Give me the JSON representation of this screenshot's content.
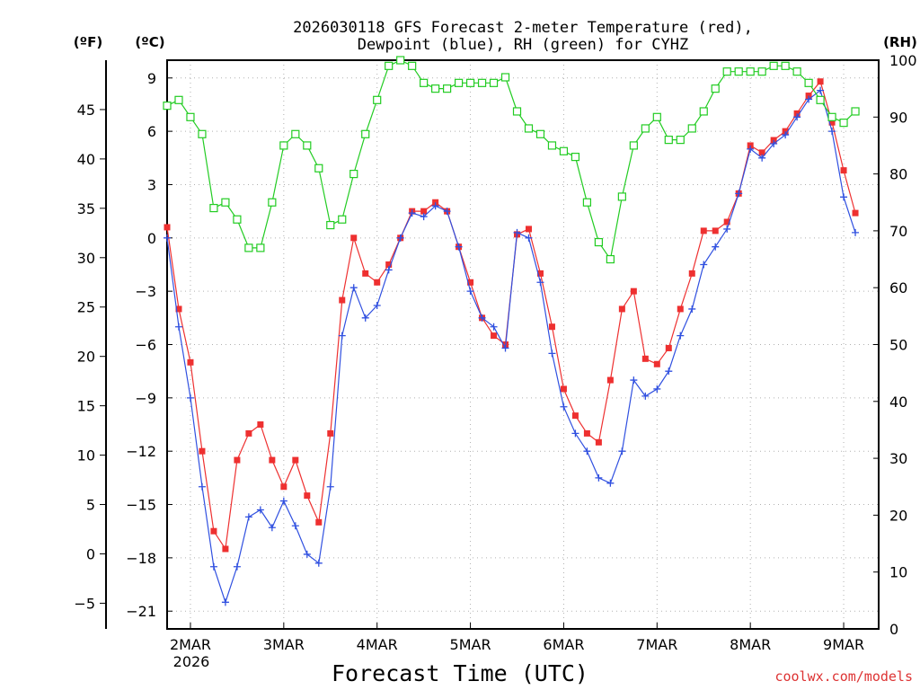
{
  "chart_data": {
    "type": "line",
    "title_line1": "2026030118 GFS Forecast 2-meter Temperature (red),",
    "title_line2": "Dewpoint (blue), RH (green) for CYHZ",
    "xlabel": "Forecast Time (UTC)",
    "credit": "coolwx.com/models",
    "unit_f": "(ºF)",
    "unit_c": "(ºC)",
    "unit_rh": "(RH)",
    "x_start_label": "2026",
    "x_unit": "days since 2026-03-01 18Z",
    "xlim": [
      0,
      7.625
    ],
    "ylim_c": [
      -22,
      10
    ],
    "ylim_rh": [
      0,
      100
    ],
    "ylim_f": [
      -7.6,
      50
    ],
    "x_ticks": [
      {
        "x": 0.25,
        "label": "2MAR"
      },
      {
        "x": 1.25,
        "label": "3MAR"
      },
      {
        "x": 2.25,
        "label": "4MAR"
      },
      {
        "x": 3.25,
        "label": "5MAR"
      },
      {
        "x": 4.25,
        "label": "6MAR"
      },
      {
        "x": 5.25,
        "label": "7MAR"
      },
      {
        "x": 6.25,
        "label": "8MAR"
      },
      {
        "x": 7.25,
        "label": "9MAR"
      }
    ],
    "c_ticks": [
      {
        "v": 9,
        "label": "9"
      },
      {
        "v": 6,
        "label": "6"
      },
      {
        "v": 3,
        "label": "3"
      },
      {
        "v": 0,
        "label": "0"
      },
      {
        "v": -3,
        "label": "−3"
      },
      {
        "v": -6,
        "label": "−6"
      },
      {
        "v": -9,
        "label": "−9"
      },
      {
        "v": -12,
        "label": "−12"
      },
      {
        "v": -15,
        "label": "−15"
      },
      {
        "v": -18,
        "label": "−18"
      },
      {
        "v": -21,
        "label": "−21"
      }
    ],
    "f_ticks": [
      {
        "v": 45,
        "label": "45"
      },
      {
        "v": 40,
        "label": "40"
      },
      {
        "v": 35,
        "label": "35"
      },
      {
        "v": 30,
        "label": "30"
      },
      {
        "v": 25,
        "label": "25"
      },
      {
        "v": 20,
        "label": "20"
      },
      {
        "v": 15,
        "label": "15"
      },
      {
        "v": 10,
        "label": "10"
      },
      {
        "v": 5,
        "label": "5"
      },
      {
        "v": 0,
        "label": "0"
      },
      {
        "v": -5,
        "label": "−5"
      }
    ],
    "rh_ticks": [
      {
        "v": 100,
        "label": "100"
      },
      {
        "v": 90,
        "label": "90"
      },
      {
        "v": 80,
        "label": "80"
      },
      {
        "v": 70,
        "label": "70"
      },
      {
        "v": 60,
        "label": "60"
      },
      {
        "v": 50,
        "label": "50"
      },
      {
        "v": 40,
        "label": "40"
      },
      {
        "v": 30,
        "label": "30"
      },
      {
        "v": 20,
        "label": "20"
      },
      {
        "v": 10,
        "label": "10"
      },
      {
        "v": 0,
        "label": "0"
      }
    ],
    "series": [
      {
        "name": "Temperature",
        "unit": "C",
        "color": "#ee3030",
        "marker": "square-filled",
        "points": [
          [
            0,
            0.6
          ],
          [
            0.125,
            -4
          ],
          [
            0.25,
            -7
          ],
          [
            0.375,
            -12
          ],
          [
            0.5,
            -16.5
          ],
          [
            0.625,
            -17.5
          ],
          [
            0.75,
            -12.5
          ],
          [
            0.875,
            -11
          ],
          [
            1,
            -10.5
          ],
          [
            1.125,
            -12.5
          ],
          [
            1.25,
            -14
          ],
          [
            1.375,
            -12.5
          ],
          [
            1.5,
            -14.5
          ],
          [
            1.625,
            -16
          ],
          [
            1.75,
            -11
          ],
          [
            1.875,
            -3.5
          ],
          [
            2,
            0
          ],
          [
            2.125,
            -2
          ],
          [
            2.25,
            -2.5
          ],
          [
            2.375,
            -1.5
          ],
          [
            2.5,
            0
          ],
          [
            2.625,
            1.5
          ],
          [
            2.75,
            1.5
          ],
          [
            2.875,
            2
          ],
          [
            3,
            1.5
          ],
          [
            3.125,
            -0.5
          ],
          [
            3.25,
            -2.5
          ],
          [
            3.375,
            -4.5
          ],
          [
            3.5,
            -5.5
          ],
          [
            3.625,
            -6
          ],
          [
            3.75,
            0.2
          ],
          [
            3.875,
            0.5
          ],
          [
            4,
            -2
          ],
          [
            4.125,
            -5
          ],
          [
            4.25,
            -8.5
          ],
          [
            4.375,
            -10
          ],
          [
            4.5,
            -11
          ],
          [
            4.625,
            -11.5
          ],
          [
            4.75,
            -8
          ],
          [
            4.875,
            -4
          ],
          [
            5,
            -3
          ],
          [
            5.125,
            -6.8
          ],
          [
            5.25,
            -7.1
          ],
          [
            5.375,
            -6.2
          ],
          [
            5.5,
            -4
          ],
          [
            5.625,
            -2
          ],
          [
            5.75,
            0.4
          ],
          [
            5.875,
            0.4
          ],
          [
            6,
            0.9
          ],
          [
            6.125,
            2.5
          ],
          [
            6.25,
            5.2
          ],
          [
            6.375,
            4.8
          ],
          [
            6.5,
            5.5
          ],
          [
            6.625,
            6
          ],
          [
            6.75,
            7
          ],
          [
            6.875,
            8
          ],
          [
            7,
            8.8
          ],
          [
            7.125,
            6.5
          ],
          [
            7.25,
            3.8
          ],
          [
            7.375,
            1.4
          ]
        ]
      },
      {
        "name": "Dewpoint",
        "unit": "C",
        "color": "#3050e0",
        "marker": "plus",
        "points": [
          [
            0,
            0
          ],
          [
            0.125,
            -5
          ],
          [
            0.25,
            -9
          ],
          [
            0.375,
            -14
          ],
          [
            0.5,
            -18.5
          ],
          [
            0.625,
            -20.5
          ],
          [
            0.75,
            -18.5
          ],
          [
            0.875,
            -15.7
          ],
          [
            1,
            -15.3
          ],
          [
            1.125,
            -16.3
          ],
          [
            1.25,
            -14.8
          ],
          [
            1.375,
            -16.2
          ],
          [
            1.5,
            -17.8
          ],
          [
            1.625,
            -18.3
          ],
          [
            1.75,
            -14
          ],
          [
            1.875,
            -5.5
          ],
          [
            2,
            -2.8
          ],
          [
            2.125,
            -4.5
          ],
          [
            2.25,
            -3.8
          ],
          [
            2.375,
            -1.8
          ],
          [
            2.5,
            0
          ],
          [
            2.625,
            1.4
          ],
          [
            2.75,
            1.2
          ],
          [
            2.875,
            1.8
          ],
          [
            3,
            1.5
          ],
          [
            3.125,
            -0.5
          ],
          [
            3.25,
            -3
          ],
          [
            3.375,
            -4.5
          ],
          [
            3.5,
            -5
          ],
          [
            3.625,
            -6.2
          ],
          [
            3.75,
            0.3
          ],
          [
            3.875,
            0
          ],
          [
            4,
            -2.5
          ],
          [
            4.125,
            -6.5
          ],
          [
            4.25,
            -9.5
          ],
          [
            4.375,
            -11
          ],
          [
            4.5,
            -12
          ],
          [
            4.625,
            -13.5
          ],
          [
            4.75,
            -13.8
          ],
          [
            4.875,
            -12
          ],
          [
            5,
            -8
          ],
          [
            5.125,
            -8.9
          ],
          [
            5.25,
            -8.5
          ],
          [
            5.375,
            -7.5
          ],
          [
            5.5,
            -5.5
          ],
          [
            5.625,
            -4
          ],
          [
            5.75,
            -1.5
          ],
          [
            5.875,
            -0.5
          ],
          [
            6,
            0.5
          ],
          [
            6.125,
            2.5
          ],
          [
            6.25,
            5
          ],
          [
            6.375,
            4.5
          ],
          [
            6.5,
            5.3
          ],
          [
            6.625,
            5.8
          ],
          [
            6.75,
            6.8
          ],
          [
            6.875,
            7.8
          ],
          [
            7,
            8.3
          ],
          [
            7.125,
            6
          ],
          [
            7.25,
            2.3
          ],
          [
            7.375,
            0.3
          ]
        ]
      },
      {
        "name": "RH",
        "unit": "%",
        "color": "#22cc22",
        "marker": "square-open",
        "points": [
          [
            0,
            92
          ],
          [
            0.125,
            93
          ],
          [
            0.25,
            90
          ],
          [
            0.375,
            87
          ],
          [
            0.5,
            74
          ],
          [
            0.625,
            75
          ],
          [
            0.75,
            72
          ],
          [
            0.875,
            67
          ],
          [
            1,
            67
          ],
          [
            1.125,
            75
          ],
          [
            1.25,
            85
          ],
          [
            1.375,
            87
          ],
          [
            1.5,
            85
          ],
          [
            1.625,
            81
          ],
          [
            1.75,
            71
          ],
          [
            1.875,
            72
          ],
          [
            2,
            80
          ],
          [
            2.125,
            87
          ],
          [
            2.25,
            93
          ],
          [
            2.375,
            99
          ],
          [
            2.5,
            100
          ],
          [
            2.625,
            99
          ],
          [
            2.75,
            96
          ],
          [
            2.875,
            95
          ],
          [
            3,
            95
          ],
          [
            3.125,
            96
          ],
          [
            3.25,
            96
          ],
          [
            3.375,
            96
          ],
          [
            3.5,
            96
          ],
          [
            3.625,
            97
          ],
          [
            3.75,
            91
          ],
          [
            3.875,
            88
          ],
          [
            4,
            87
          ],
          [
            4.125,
            85
          ],
          [
            4.25,
            84
          ],
          [
            4.375,
            83
          ],
          [
            4.5,
            75
          ],
          [
            4.625,
            68
          ],
          [
            4.75,
            65
          ],
          [
            4.875,
            76
          ],
          [
            5,
            85
          ],
          [
            5.125,
            88
          ],
          [
            5.25,
            90
          ],
          [
            5.375,
            86
          ],
          [
            5.5,
            86
          ],
          [
            5.625,
            88
          ],
          [
            5.75,
            91
          ],
          [
            5.875,
            95
          ],
          [
            6,
            98
          ],
          [
            6.125,
            98
          ],
          [
            6.25,
            98
          ],
          [
            6.375,
            98
          ],
          [
            6.5,
            99
          ],
          [
            6.625,
            99
          ],
          [
            6.75,
            98
          ],
          [
            6.875,
            96
          ],
          [
            7,
            93
          ],
          [
            7.125,
            90
          ],
          [
            7.25,
            89
          ],
          [
            7.375,
            91
          ]
        ]
      }
    ]
  }
}
